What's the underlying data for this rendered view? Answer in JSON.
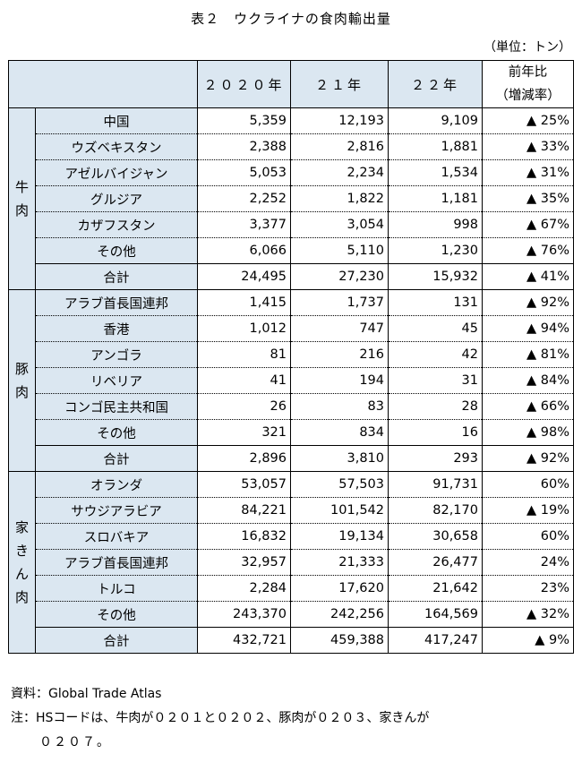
{
  "title": "表２　ウクライナの食肉輸出量",
  "unit": "（単位：トン）",
  "header": {
    "years": [
      "２０２０年",
      "２１年",
      "２２年"
    ],
    "ratio_line1": "前年比",
    "ratio_line2": "（増減率）"
  },
  "sections": [
    {
      "label_chars": [
        "牛",
        "肉"
      ],
      "rows": [
        {
          "name": "中国",
          "v2020": "5,359",
          "v21": "12,193",
          "v22": "9,109",
          "ratio": "▲ 25%"
        },
        {
          "name": "ウズベキスタン",
          "v2020": "2,388",
          "v21": "2,816",
          "v22": "1,881",
          "ratio": "▲ 33%"
        },
        {
          "name": "アゼルバイジャン",
          "v2020": "5,053",
          "v21": "2,234",
          "v22": "1,534",
          "ratio": "▲ 31%"
        },
        {
          "name": "グルジア",
          "v2020": "2,252",
          "v21": "1,822",
          "v22": "1,181",
          "ratio": "▲ 35%"
        },
        {
          "name": "カザフスタン",
          "v2020": "3,377",
          "v21": "3,054",
          "v22": "998",
          "ratio": "▲ 67%"
        },
        {
          "name": "その他",
          "v2020": "6,066",
          "v21": "5,110",
          "v22": "1,230",
          "ratio": "▲ 76%"
        }
      ],
      "total": {
        "name": "合計",
        "v2020": "24,495",
        "v21": "27,230",
        "v22": "15,932",
        "ratio": "▲ 41%"
      }
    },
    {
      "label_chars": [
        "豚",
        "肉"
      ],
      "rows": [
        {
          "name": "アラブ首長国連邦",
          "v2020": "1,415",
          "v21": "1,737",
          "v22": "131",
          "ratio": "▲ 92%"
        },
        {
          "name": "香港",
          "v2020": "1,012",
          "v21": "747",
          "v22": "45",
          "ratio": "▲ 94%"
        },
        {
          "name": "アンゴラ",
          "v2020": "81",
          "v21": "216",
          "v22": "42",
          "ratio": "▲ 81%"
        },
        {
          "name": "リベリア",
          "v2020": "41",
          "v21": "194",
          "v22": "31",
          "ratio": "▲ 84%"
        },
        {
          "name": "コンゴ民主共和国",
          "v2020": "26",
          "v21": "83",
          "v22": "28",
          "ratio": "▲ 66%"
        },
        {
          "name": "その他",
          "v2020": "321",
          "v21": "834",
          "v22": "16",
          "ratio": "▲ 98%"
        }
      ],
      "total": {
        "name": "合計",
        "v2020": "2,896",
        "v21": "3,810",
        "v22": "293",
        "ratio": "▲ 92%"
      }
    },
    {
      "label_chars": [
        "家",
        "き",
        "ん",
        "肉"
      ],
      "rows": [
        {
          "name": "オランダ",
          "v2020": "53,057",
          "v21": "57,503",
          "v22": "91,731",
          "ratio": "60%"
        },
        {
          "name": "サウジアラビア",
          "v2020": "84,221",
          "v21": "101,542",
          "v22": "82,170",
          "ratio": "▲ 19%"
        },
        {
          "name": "スロバキア",
          "v2020": "16,832",
          "v21": "19,134",
          "v22": "30,658",
          "ratio": "60%"
        },
        {
          "name": "アラブ首長国連邦",
          "v2020": "32,957",
          "v21": "21,333",
          "v22": "26,477",
          "ratio": "24%"
        },
        {
          "name": "トルコ",
          "v2020": "2,284",
          "v21": "17,620",
          "v22": "21,642",
          "ratio": "23%"
        },
        {
          "name": "その他",
          "v2020": "243,370",
          "v21": "242,256",
          "v22": "164,569",
          "ratio": "▲ 32%"
        }
      ],
      "total": {
        "name": "合計",
        "v2020": "432,721",
        "v21": "459,388",
        "v22": "417,247",
        "ratio": "▲ 9%"
      }
    }
  ],
  "source": "資料：Global Trade Atlas",
  "note_line1": "注：HSコードは、牛肉が０２０１と０２０２、豚肉が０２０３、家きんが",
  "note_line2": "０２０７。",
  "colors": {
    "header_fill": "#dbe7f1",
    "border": "#000000"
  }
}
